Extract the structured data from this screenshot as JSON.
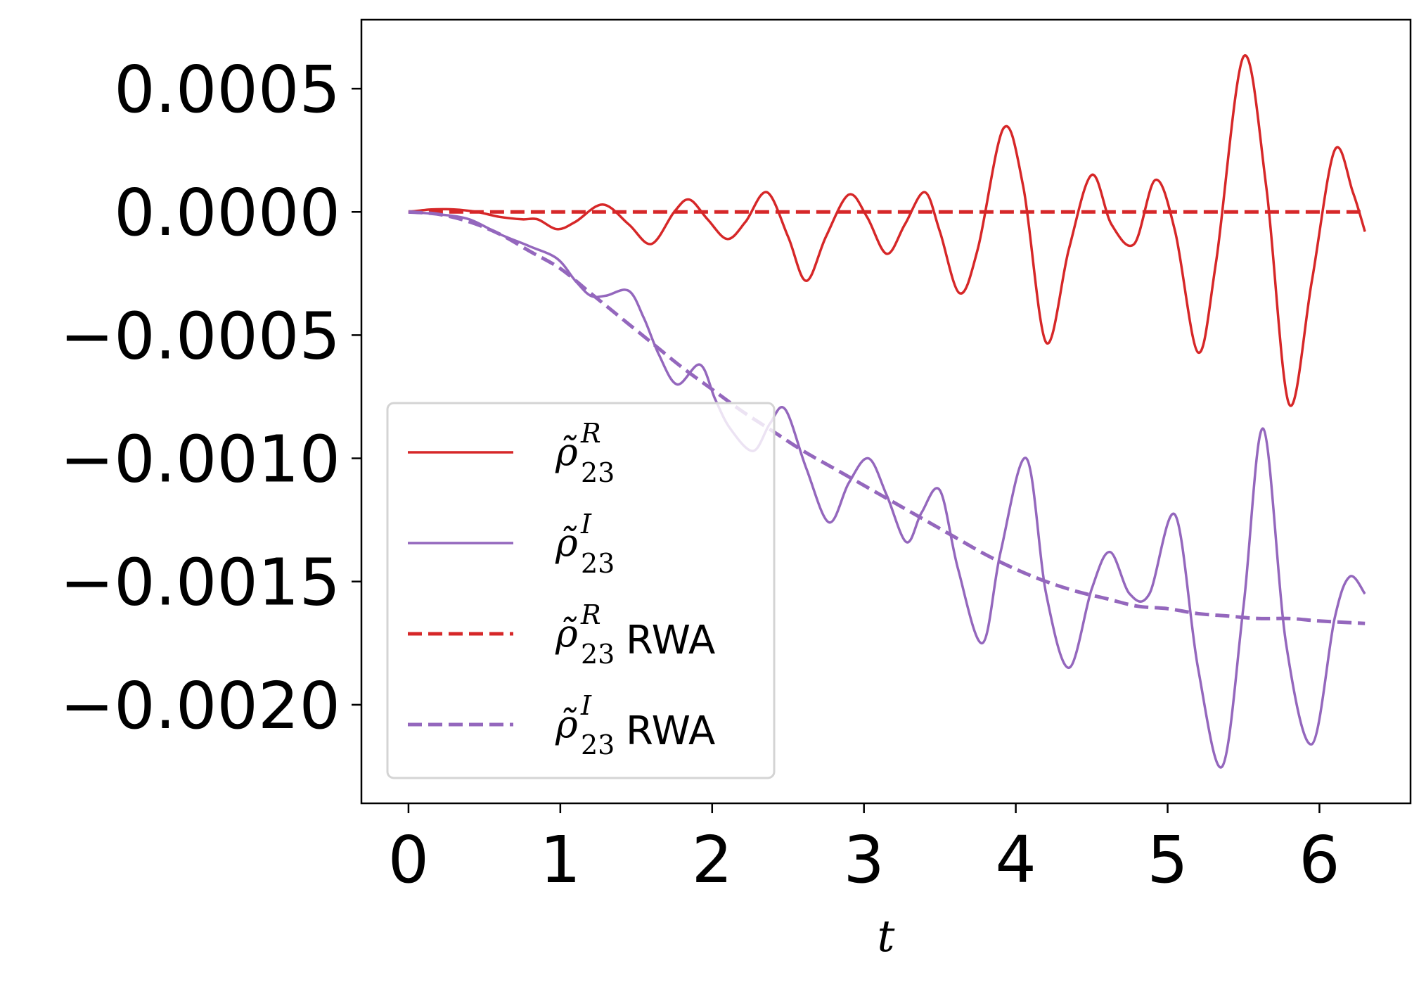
{
  "chart_data": {
    "type": "line",
    "title": "",
    "xlabel": "t",
    "ylabel": "",
    "xlim": [
      -0.31,
      6.6
    ],
    "ylim": [
      -0.0024,
      0.00078
    ],
    "xticks": [
      0,
      1,
      2,
      3,
      4,
      5,
      6
    ],
    "xtick_labels": [
      "0",
      "1",
      "2",
      "3",
      "4",
      "5",
      "6"
    ],
    "yticks": [
      0.0005,
      0.0,
      -0.0005,
      -0.001,
      -0.0015,
      -0.002
    ],
    "ytick_labels": [
      "0.0005",
      "0.0000",
      "−0.0005",
      "−0.0010",
      "−0.0015",
      "−0.0020"
    ],
    "grid": false,
    "legend_position": "lower-left",
    "series": [
      {
        "name": "ρ̃_23^R",
        "legend": {
          "sym": "ρ̃",
          "sup": "R",
          "sub": "23",
          "suffix": ""
        },
        "color": "#d62728",
        "dash": "solid",
        "x": [
          0,
          0.15,
          0.3,
          0.45,
          0.6,
          0.75,
          0.85,
          0.98,
          1.1,
          1.28,
          1.45,
          1.6,
          1.75,
          1.85,
          1.97,
          2.1,
          2.22,
          2.36,
          2.5,
          2.62,
          2.75,
          2.9,
          3.02,
          3.15,
          3.27,
          3.4,
          3.5,
          3.63,
          3.75,
          3.92,
          4.05,
          4.2,
          4.35,
          4.5,
          4.63,
          4.78,
          4.92,
          5.05,
          5.2,
          5.32,
          5.5,
          5.65,
          5.8,
          5.95,
          6.1,
          6.22,
          6.3
        ],
        "y": [
          0,
          1e-05,
          1e-05,
          0.0,
          -2e-05,
          -3e-05,
          -3e-05,
          -7e-05,
          -4e-05,
          3e-05,
          -5e-05,
          -0.00013,
          0.0,
          5e-05,
          -3e-05,
          -0.00011,
          -4e-05,
          8e-05,
          -0.0001,
          -0.00028,
          -0.0001,
          7e-05,
          -2e-05,
          -0.00017,
          -5e-05,
          8e-05,
          -8e-05,
          -0.00033,
          -0.00015,
          0.00034,
          0.0001,
          -0.00053,
          -0.00015,
          0.00015,
          -5e-05,
          -0.00013,
          0.00013,
          -8e-05,
          -0.00057,
          -0.0002,
          0.00063,
          0.0001,
          -0.00078,
          -0.00028,
          0.00025,
          8e-05,
          -8e-05
        ]
      },
      {
        "name": "ρ̃_23^I",
        "legend": {
          "sym": "ρ̃",
          "sup": "I",
          "sub": "23",
          "suffix": ""
        },
        "color": "#9467bd",
        "dash": "solid",
        "x": [
          0,
          0.2,
          0.4,
          0.6,
          0.8,
          0.98,
          1.1,
          1.2,
          1.3,
          1.45,
          1.55,
          1.65,
          1.77,
          1.92,
          2.02,
          2.12,
          2.27,
          2.38,
          2.48,
          2.62,
          2.77,
          2.9,
          3.03,
          3.15,
          3.28,
          3.38,
          3.5,
          3.62,
          3.78,
          3.9,
          4.07,
          4.2,
          4.35,
          4.5,
          4.62,
          4.75,
          4.88,
          5.05,
          5.2,
          5.36,
          5.5,
          5.63,
          5.78,
          5.95,
          6.1,
          6.2,
          6.3
        ],
        "y": [
          0,
          -1e-05,
          -3e-05,
          -9e-05,
          -0.00014,
          -0.00019,
          -0.00028,
          -0.00034,
          -0.00034,
          -0.00032,
          -0.00043,
          -0.00058,
          -0.0007,
          -0.00062,
          -0.00076,
          -0.00088,
          -0.00097,
          -0.00086,
          -0.0008,
          -0.00104,
          -0.00126,
          -0.0011,
          -0.001,
          -0.00115,
          -0.00134,
          -0.00122,
          -0.00113,
          -0.00145,
          -0.00175,
          -0.00138,
          -0.001,
          -0.00155,
          -0.00185,
          -0.00153,
          -0.00138,
          -0.00155,
          -0.00155,
          -0.00123,
          -0.00185,
          -0.00225,
          -0.0016,
          -0.00088,
          -0.00175,
          -0.00216,
          -0.00165,
          -0.00148,
          -0.00155
        ]
      },
      {
        "name": "ρ̃_23^R RWA",
        "legend": {
          "sym": "ρ̃",
          "sup": "R",
          "sub": "23",
          "suffix": "RWA"
        },
        "color": "#d62728",
        "dash": "dashed",
        "x": [
          0,
          6.3
        ],
        "y": [
          0,
          0
        ]
      },
      {
        "name": "ρ̃_23^I RWA",
        "legend": {
          "sym": "ρ̃",
          "sup": "I",
          "sub": "23",
          "suffix": "RWA"
        },
        "color": "#9467bd",
        "dash": "dashed",
        "x": [
          0,
          0.2,
          0.4,
          0.6,
          0.8,
          1.0,
          1.2,
          1.4,
          1.6,
          1.8,
          2.0,
          2.2,
          2.4,
          2.6,
          2.8,
          3.0,
          3.2,
          3.4,
          3.6,
          3.8,
          4.0,
          4.2,
          4.4,
          4.6,
          4.8,
          5.0,
          5.2,
          5.4,
          5.6,
          5.8,
          6.0,
          6.3
        ],
        "y": [
          0,
          -1e-05,
          -4e-05,
          -9e-05,
          -0.00016,
          -0.00023,
          -0.00033,
          -0.00043,
          -0.00053,
          -0.00063,
          -0.00072,
          -0.00081,
          -0.00089,
          -0.00097,
          -0.00104,
          -0.00111,
          -0.00118,
          -0.00125,
          -0.00132,
          -0.00139,
          -0.00145,
          -0.0015,
          -0.00154,
          -0.00157,
          -0.0016,
          -0.00161,
          -0.00163,
          -0.00164,
          -0.00165,
          -0.00165,
          -0.00166,
          -0.00167
        ]
      }
    ]
  }
}
